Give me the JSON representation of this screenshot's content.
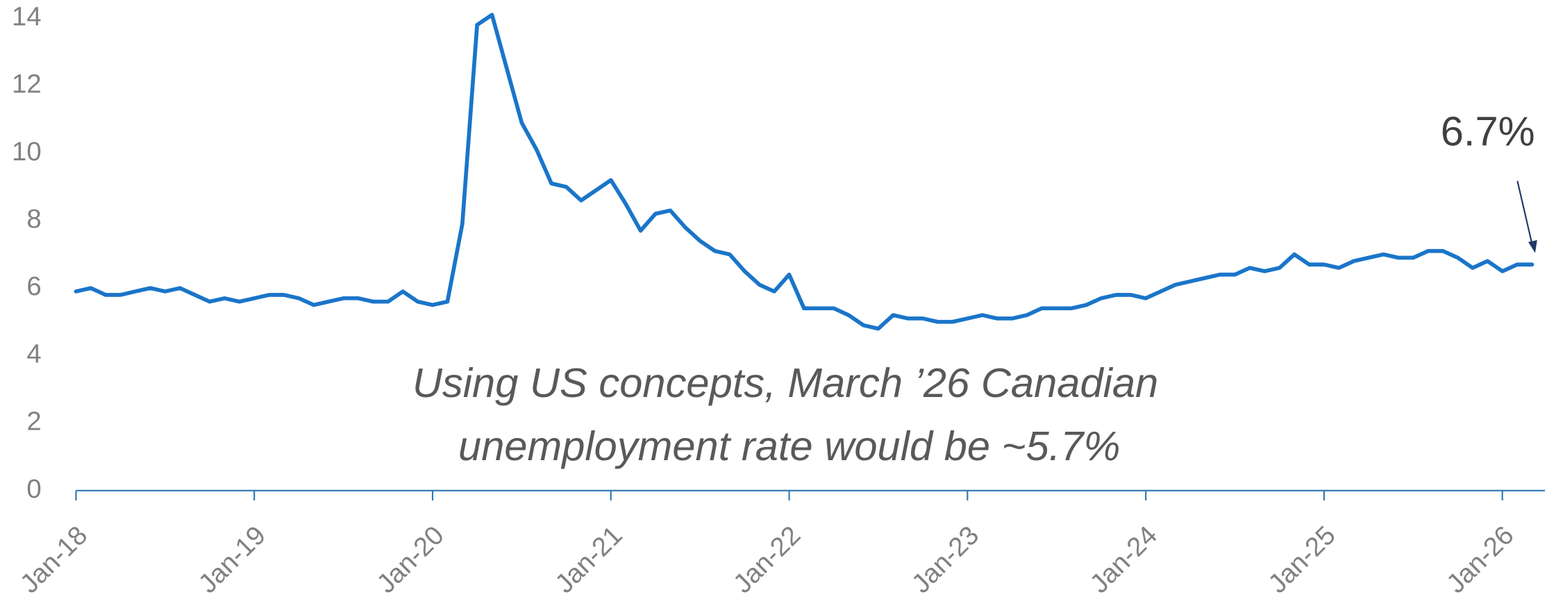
{
  "chart_data": {
    "type": "line",
    "x": [
      "2018-01",
      "2018-02",
      "2018-03",
      "2018-04",
      "2018-05",
      "2018-06",
      "2018-07",
      "2018-08",
      "2018-09",
      "2018-10",
      "2018-11",
      "2018-12",
      "2019-01",
      "2019-02",
      "2019-03",
      "2019-04",
      "2019-05",
      "2019-06",
      "2019-07",
      "2019-08",
      "2019-09",
      "2019-10",
      "2019-11",
      "2019-12",
      "2020-01",
      "2020-02",
      "2020-03",
      "2020-04",
      "2020-05",
      "2020-06",
      "2020-07",
      "2020-08",
      "2020-09",
      "2020-10",
      "2020-11",
      "2020-12",
      "2021-01",
      "2021-02",
      "2021-03",
      "2021-04",
      "2021-05",
      "2021-06",
      "2021-07",
      "2021-08",
      "2021-09",
      "2021-10",
      "2021-11",
      "2021-12",
      "2022-01",
      "2022-02",
      "2022-03",
      "2022-04",
      "2022-05",
      "2022-06",
      "2022-07",
      "2022-08",
      "2022-09",
      "2022-10",
      "2022-11",
      "2022-12",
      "2023-01",
      "2023-02",
      "2023-03",
      "2023-04",
      "2023-05",
      "2023-06",
      "2023-07",
      "2023-08",
      "2023-09",
      "2023-10",
      "2023-11",
      "2023-12",
      "2024-01",
      "2024-02",
      "2024-03",
      "2024-04",
      "2024-05",
      "2024-06",
      "2024-07",
      "2024-08",
      "2024-09",
      "2024-10",
      "2024-11",
      "2024-12",
      "2025-01",
      "2025-02",
      "2025-03",
      "2025-04",
      "2025-05",
      "2025-06",
      "2025-07",
      "2025-08",
      "2025-09",
      "2025-10",
      "2025-11",
      "2025-12",
      "2026-01",
      "2026-02",
      "2026-03"
    ],
    "values": [
      5.9,
      6.0,
      5.8,
      5.8,
      5.9,
      6.0,
      5.9,
      6.0,
      5.8,
      5.6,
      5.7,
      5.6,
      5.7,
      5.8,
      5.8,
      5.7,
      5.5,
      5.6,
      5.7,
      5.7,
      5.6,
      5.6,
      5.9,
      5.6,
      5.5,
      5.6,
      7.9,
      13.8,
      14.1,
      12.5,
      10.9,
      10.1,
      9.1,
      9.0,
      8.6,
      8.9,
      9.2,
      8.5,
      7.7,
      8.2,
      8.3,
      7.8,
      7.4,
      7.1,
      7.0,
      6.5,
      6.1,
      5.9,
      6.4,
      5.4,
      5.4,
      5.4,
      5.2,
      4.9,
      4.8,
      5.2,
      5.1,
      5.1,
      5.0,
      5.0,
      5.1,
      5.2,
      5.1,
      5.1,
      5.2,
      5.4,
      5.4,
      5.4,
      5.5,
      5.7,
      5.8,
      5.8,
      5.7,
      5.9,
      6.1,
      6.2,
      6.3,
      6.4,
      6.4,
      6.6,
      6.5,
      6.6,
      7.0,
      6.7,
      6.7,
      6.6,
      6.8,
      6.9,
      7.0,
      6.9,
      6.9,
      7.1,
      7.1,
      6.9,
      6.6,
      6.8,
      6.5,
      6.7,
      6.7
    ],
    "color": "#1a75c9",
    "ylim": [
      0,
      14
    ],
    "yticks": [
      0,
      2,
      4,
      6,
      8,
      10,
      12,
      14
    ],
    "xticks": [
      {
        "value": "2018-01",
        "label": "Jan-18"
      },
      {
        "value": "2019-01",
        "label": "Jan-19"
      },
      {
        "value": "2020-01",
        "label": "Jan-20"
      },
      {
        "value": "2021-01",
        "label": "Jan-21"
      },
      {
        "value": "2022-01",
        "label": "Jan-22"
      },
      {
        "value": "2023-01",
        "label": "Jan-23"
      },
      {
        "value": "2024-01",
        "label": "Jan-24"
      },
      {
        "value": "2025-01",
        "label": "Jan-25"
      },
      {
        "value": "2026-01",
        "label": "Jan-26"
      }
    ],
    "annotation": "6.7%",
    "note": [
      "Using US concepts, March ’26 Canadian",
      "unemployment rate would be ~5.7%"
    ]
  }
}
